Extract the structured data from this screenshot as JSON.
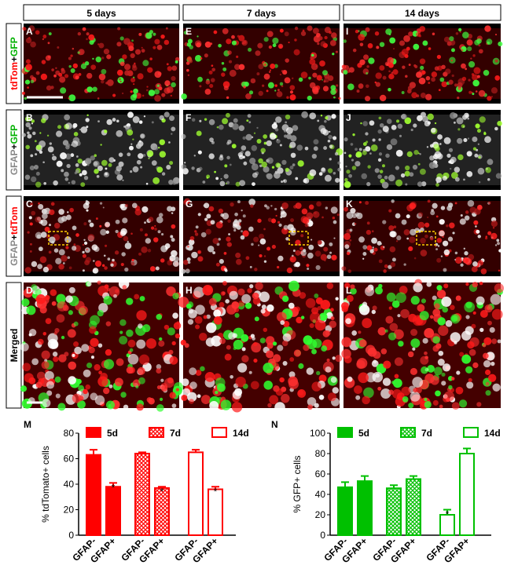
{
  "figure": {
    "columns": [
      "5 days",
      "7 days",
      "14 days"
    ],
    "rows": [
      [
        "tdTom",
        "+",
        "GFP"
      ],
      [
        "GFAP",
        "+",
        "GFP"
      ],
      [
        "GFAP",
        "+",
        "tdTom"
      ],
      [
        "Merged"
      ]
    ],
    "panels": [
      "A",
      "B",
      "C",
      "D",
      "E",
      "F",
      "G",
      "H",
      "I",
      "J",
      "K",
      "L"
    ]
  },
  "chart_data": [
    {
      "type": "bar",
      "label": "M",
      "ylabel": "% tdTomato+ cells",
      "categories": [
        "GFAP-",
        "GFAP+"
      ],
      "series": [
        {
          "name": "5d",
          "color": "#ff0000",
          "style": "solid",
          "values": [
            63,
            38
          ],
          "errors": [
            4,
            3
          ]
        },
        {
          "name": "7d",
          "color": "#ff0000",
          "style": "hatch",
          "values": [
            64,
            37
          ],
          "errors": [
            1,
            1
          ]
        },
        {
          "name": "14d",
          "color": "#ff0000",
          "style": "open",
          "values": [
            65,
            36
          ],
          "errors": [
            2,
            2
          ]
        }
      ],
      "annotations": [
        {
          "text": "*",
          "series": "5d",
          "category": "GFAP+"
        },
        {
          "text": "*",
          "series": "7d",
          "category": "GFAP+"
        },
        {
          "text": "*",
          "series": "14d",
          "category": "GFAP+"
        }
      ],
      "ylim": [
        0,
        80
      ],
      "yticks": [
        0,
        20,
        40,
        60,
        80
      ]
    },
    {
      "type": "bar",
      "label": "N",
      "ylabel": "% GFP+ cells",
      "categories": [
        "GFAP-",
        "GFAP+"
      ],
      "series": [
        {
          "name": "5d",
          "color": "#00c000",
          "style": "solid",
          "values": [
            47,
            53
          ],
          "errors": [
            5,
            5
          ]
        },
        {
          "name": "7d",
          "color": "#00c000",
          "style": "hatch",
          "values": [
            46,
            55
          ],
          "errors": [
            3,
            3
          ]
        },
        {
          "name": "14d",
          "color": "#00c000",
          "style": "open",
          "values": [
            20,
            80
          ],
          "errors": [
            5,
            5
          ]
        }
      ],
      "annotations": [
        {
          "text": "*",
          "series": "14d",
          "category": "GFAP-"
        }
      ],
      "ylim": [
        0,
        100
      ],
      "yticks": [
        0,
        20,
        40,
        60,
        80,
        100
      ]
    }
  ]
}
